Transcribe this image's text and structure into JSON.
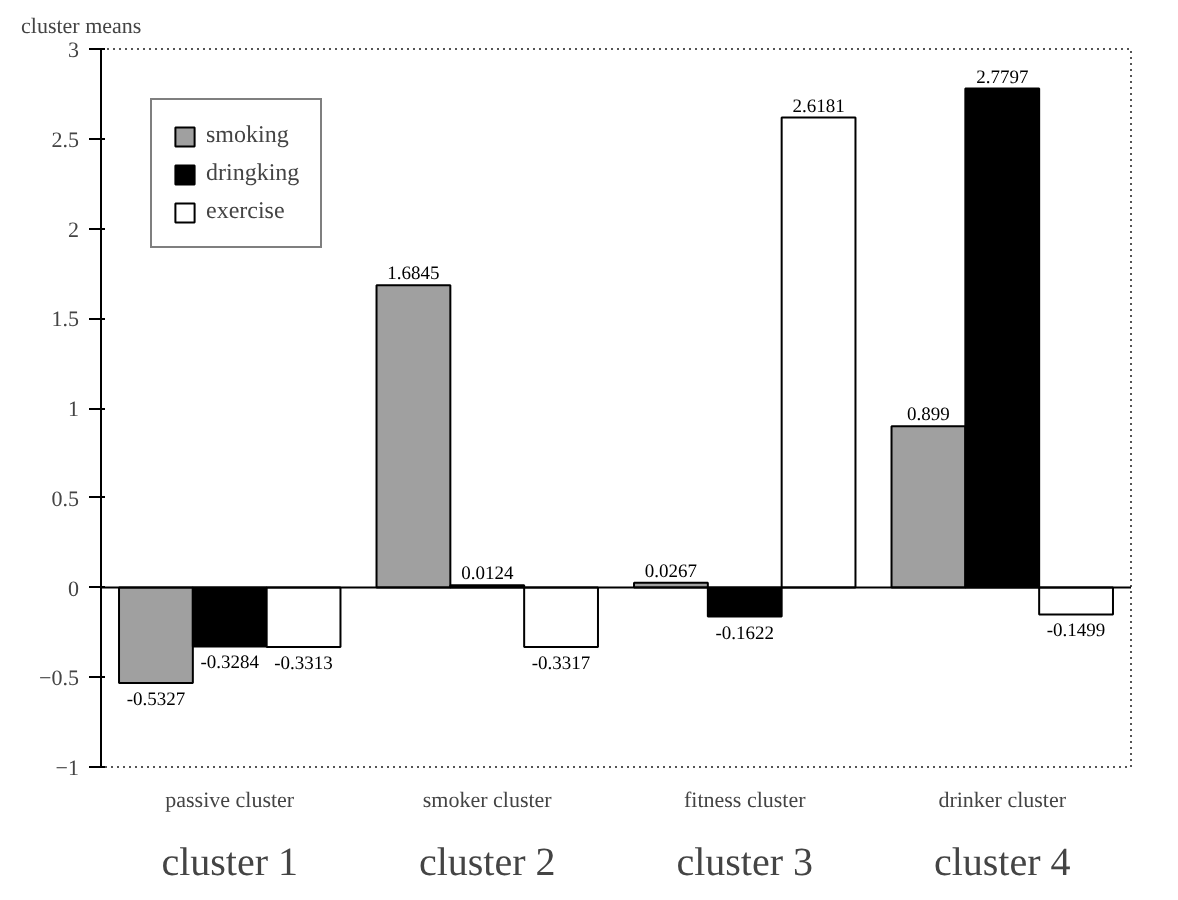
{
  "chart_data": {
    "type": "bar",
    "ylabel": "cluster means",
    "categories": [
      "passive cluster",
      "smoker cluster",
      "fitness cluster",
      "drinker cluster"
    ],
    "series": [
      {
        "name": "smoking",
        "color": "#a0a0a0",
        "values": [
          -0.5327,
          1.6845,
          0.0267,
          0.899
        ]
      },
      {
        "name": "dringking",
        "color": "#000000",
        "values": [
          -0.3284,
          0.0124,
          -0.1622,
          2.7797
        ]
      },
      {
        "name": "exercise",
        "color": "#ffffff",
        "values": [
          -0.3313,
          -0.3317,
          2.6181,
          -0.1499
        ]
      }
    ],
    "ylim": [
      -1,
      3
    ],
    "yticks": [
      -1,
      -0.5,
      0,
      0.5,
      1,
      1.5,
      2,
      2.5,
      3
    ],
    "data_labels": true,
    "legend": "top left",
    "annotations": [
      "cluster 1",
      "cluster 2",
      "cluster 3",
      "cluster 4"
    ]
  }
}
